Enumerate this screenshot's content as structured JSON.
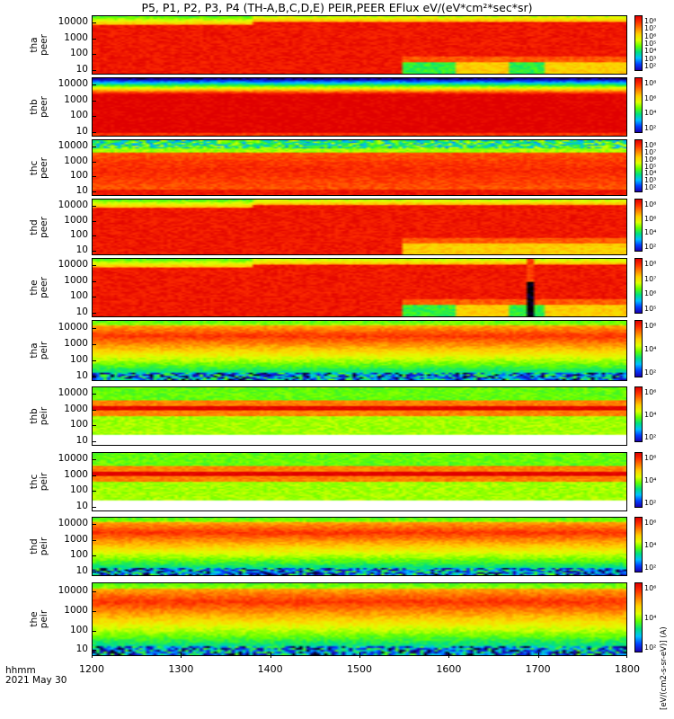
{
  "title": "P5, P1, P2, P3, P4 (TH-A,B,C,D,E) PEIR,PEER EFlux eV/(eV*cm²*sec*sr)",
  "x_label_line1": "hhmm",
  "x_label_line2": "2021 May 30",
  "cbar_unit_label": "[eV/(cm2-s-sr-eV)] (A)",
  "chart_data": {
    "type": "heatmap",
    "x_ticks": [
      "1200",
      "1300",
      "1400",
      "1500",
      "1600",
      "1700",
      "1800"
    ],
    "x_range": [
      1200,
      1800
    ],
    "y_scale": "log",
    "y_range": [
      5,
      30000
    ],
    "y_ticks": [
      "10000",
      "1000",
      "100",
      "10"
    ],
    "panels": [
      {
        "label": "tha\npeer",
        "species": "electron",
        "probe": "a",
        "cbar_ticks": [
          "10⁸",
          "10⁷",
          "10⁶",
          "10⁵",
          "10⁴",
          "10³",
          "10²"
        ]
      },
      {
        "label": "thb\npeer",
        "species": "electron",
        "probe": "b",
        "cbar_ticks": [
          "10⁸",
          "10⁶",
          "10⁴",
          "10²"
        ]
      },
      {
        "label": "thc\npeer",
        "species": "electron",
        "probe": "c",
        "cbar_ticks": [
          "10⁸",
          "10⁷",
          "10⁶",
          "10⁵",
          "10⁴",
          "10³",
          "10²"
        ]
      },
      {
        "label": "thd\npeer",
        "species": "electron",
        "probe": "d",
        "cbar_ticks": [
          "10⁸",
          "10⁶",
          "10⁴",
          "10²"
        ]
      },
      {
        "label": "the\npeer",
        "species": "electron",
        "probe": "e",
        "cbar_ticks": [
          "10⁸",
          "10⁷",
          "10⁶",
          "10⁵"
        ]
      },
      {
        "label": "tha\npeir",
        "species": "ion",
        "probe": "a",
        "cbar_ticks": [
          "10⁶",
          "10⁴",
          "10²"
        ]
      },
      {
        "label": "thb\npeir",
        "species": "ion",
        "probe": "b",
        "cbar_ticks": [
          "10⁶",
          "10⁴",
          "10²"
        ]
      },
      {
        "label": "thc\npeir",
        "species": "ion",
        "probe": "c",
        "cbar_ticks": [
          "10⁶",
          "10⁴",
          "10²"
        ]
      },
      {
        "label": "thd\npeir",
        "species": "ion",
        "probe": "d",
        "cbar_ticks": [
          "10⁶",
          "10⁴",
          "10²"
        ]
      },
      {
        "label": "the\npeir",
        "species": "ion",
        "probe": "e",
        "cbar_ticks": [
          "10⁶",
          "10⁴",
          "10²"
        ]
      }
    ],
    "colormap": [
      "#000000",
      "#1a00b0",
      "#0040ff",
      "#00c0ff",
      "#00e080",
      "#60ff00",
      "#e0ff00",
      "#ffd000",
      "#ff8000",
      "#ff3000",
      "#e00000"
    ]
  }
}
